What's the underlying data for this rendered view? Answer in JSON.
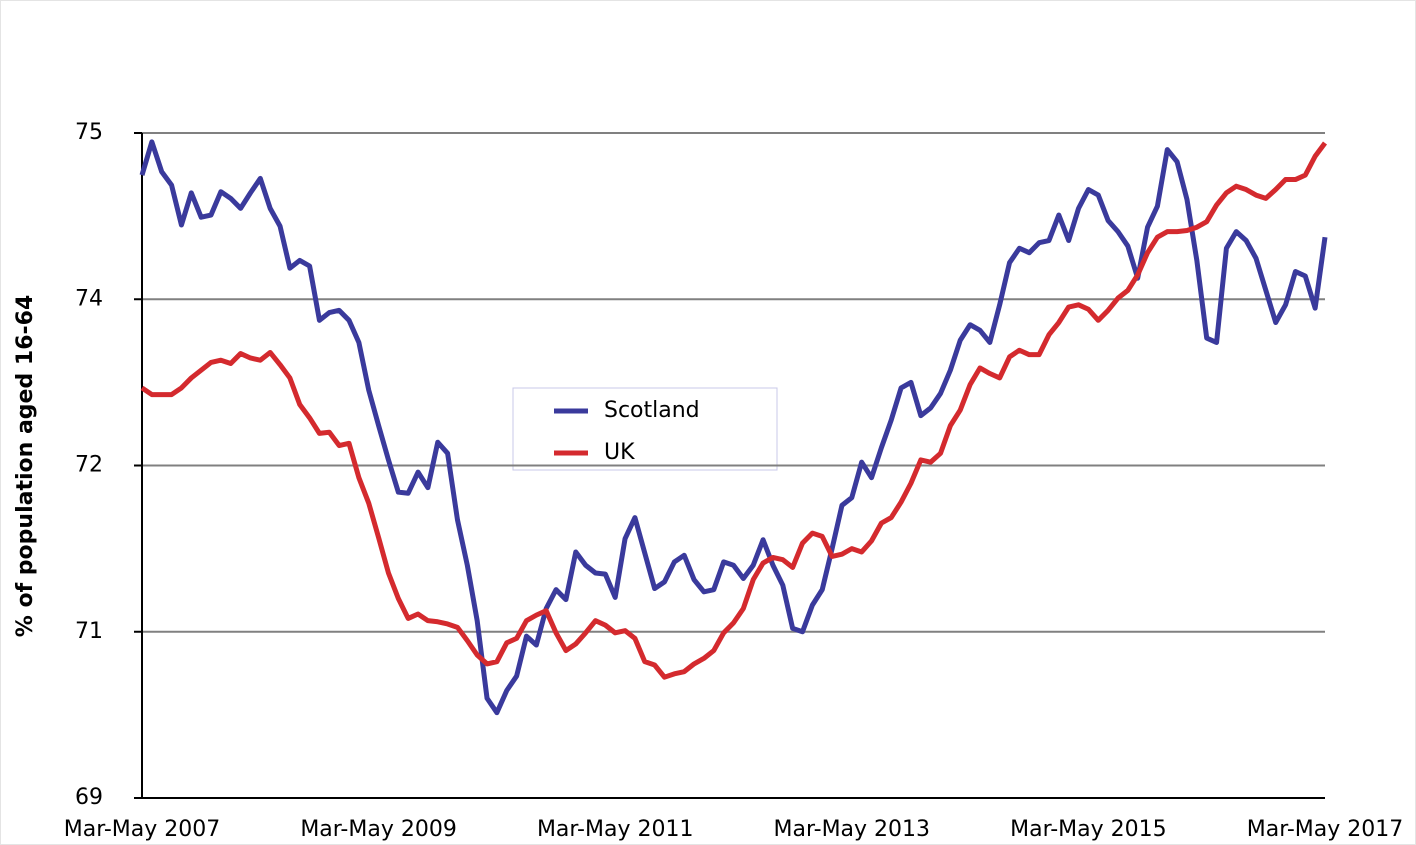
{
  "chart_data": {
    "type": "line",
    "y_label": "% of population aged 16-64",
    "categories": [
      "Mar-May 2007",
      null,
      null,
      null,
      null,
      null,
      null,
      null,
      null,
      null,
      null,
      null,
      null,
      null,
      null,
      null,
      null,
      null,
      null,
      null,
      null,
      null,
      null,
      null,
      "Mar-May 2009",
      null,
      null,
      null,
      null,
      null,
      null,
      null,
      null,
      null,
      null,
      null,
      null,
      null,
      null,
      null,
      null,
      null,
      null,
      null,
      null,
      null,
      null,
      null,
      "Mar-May 2011",
      null,
      null,
      null,
      null,
      null,
      null,
      null,
      null,
      null,
      null,
      null,
      null,
      null,
      null,
      null,
      null,
      null,
      null,
      null,
      null,
      null,
      null,
      null,
      "Mar-May 2013",
      null,
      null,
      null,
      null,
      null,
      null,
      null,
      null,
      null,
      null,
      null,
      null,
      null,
      null,
      null,
      null,
      null,
      null,
      null,
      null,
      null,
      null,
      null,
      "Mar-May 2015",
      null,
      null,
      null,
      null,
      null,
      null,
      null,
      null,
      null,
      null,
      null,
      null,
      null,
      null,
      null,
      null,
      null,
      null,
      null,
      null,
      null,
      null,
      null,
      "Mar-May 2017"
    ],
    "series": [
      {
        "name": "Scotland",
        "color": "#3a3a9c",
        "values": [
          74.62,
          74.92,
          74.65,
          74.53,
          74.17,
          74.46,
          74.24,
          74.26,
          74.47,
          74.41,
          74.32,
          74.46,
          74.59,
          74.32,
          74.16,
          73.78,
          73.85,
          73.8,
          73.31,
          73.38,
          73.4,
          73.31,
          73.11,
          72.68,
          72.36,
          72.05,
          71.76,
          71.75,
          71.94,
          71.8,
          72.21,
          72.11,
          71.51,
          71.1,
          70.6,
          69.9,
          69.77,
          69.97,
          70.1,
          70.46,
          70.38,
          70.71,
          70.88,
          70.79,
          71.22,
          71.1,
          71.03,
          71.02,
          70.81,
          71.34,
          71.53,
          71.21,
          70.89,
          70.95,
          71.13,
          71.19,
          70.97,
          70.86,
          70.88,
          71.13,
          71.1,
          70.98,
          71.1,
          71.33,
          71.1,
          70.92,
          70.53,
          70.5,
          70.74,
          70.88,
          71.25,
          71.64,
          71.71,
          72.03,
          71.89,
          72.16,
          72.41,
          72.7,
          72.75,
          72.45,
          72.52,
          72.65,
          72.86,
          73.13,
          73.27,
          73.22,
          73.11,
          73.45,
          73.83,
          73.96,
          73.92,
          74.01,
          74.03,
          74.26,
          74.03,
          74.32,
          74.49,
          74.44,
          74.21,
          74.11,
          73.98,
          73.69,
          74.15,
          74.34,
          74.85,
          74.74,
          74.4,
          73.85,
          73.15,
          73.11,
          73.96,
          74.11,
          74.03,
          73.87,
          73.58,
          73.29,
          73.45,
          73.75,
          73.71,
          73.42,
          74.06
        ]
      },
      {
        "name": "UK",
        "color": "#d42a2e",
        "values": [
          72.7,
          72.64,
          72.64,
          72.64,
          72.7,
          72.79,
          72.86,
          72.93,
          72.95,
          72.92,
          73.01,
          72.97,
          72.95,
          73.02,
          72.91,
          72.79,
          72.55,
          72.43,
          72.29,
          72.3,
          72.18,
          72.2,
          71.89,
          71.66,
          71.35,
          71.03,
          70.8,
          70.62,
          70.66,
          70.6,
          70.59,
          70.57,
          70.54,
          70.42,
          70.29,
          70.21,
          70.23,
          70.4,
          70.44,
          70.6,
          70.65,
          70.69,
          70.49,
          70.33,
          70.39,
          70.49,
          70.6,
          70.56,
          70.49,
          70.51,
          70.44,
          70.23,
          70.2,
          70.09,
          70.12,
          70.14,
          70.21,
          70.26,
          70.33,
          70.49,
          70.58,
          70.71,
          70.97,
          71.12,
          71.17,
          71.15,
          71.08,
          71.3,
          71.39,
          71.36,
          71.18,
          71.2,
          71.25,
          71.22,
          71.32,
          71.48,
          71.53,
          71.67,
          71.84,
          72.05,
          72.03,
          72.11,
          72.36,
          72.5,
          72.73,
          72.88,
          72.83,
          72.79,
          72.98,
          73.04,
          73.0,
          73.0,
          73.18,
          73.29,
          73.43,
          73.45,
          73.41,
          73.31,
          73.4,
          73.51,
          73.58,
          73.72,
          73.92,
          74.06,
          74.11,
          74.11,
          74.12,
          74.15,
          74.2,
          74.35,
          74.46,
          74.52,
          74.49,
          74.44,
          74.41,
          74.49,
          74.58,
          74.58,
          74.62,
          74.79,
          74.91
        ]
      }
    ],
    "ylim": [
      69,
      75
    ],
    "yticks": [
      69,
      {
        "value": 70.5,
        "label": "71"
      },
      72,
      {
        "value": 73.5,
        "label": "74"
      },
      75
    ],
    "grid": true
  }
}
